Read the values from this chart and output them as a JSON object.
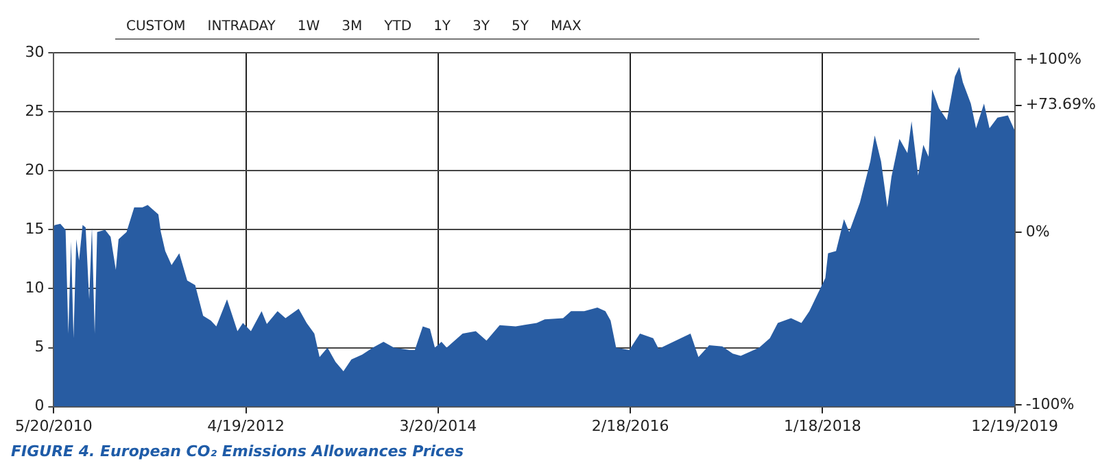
{
  "chart_data": {
    "type": "area",
    "title": "FIGURE 4. European CO₂ Emissions Allowances Prices",
    "annotations": [
      "CUSTOM",
      "INTRADAY",
      "1W",
      "3M",
      "YTD",
      "1Y",
      "3Y",
      "5Y",
      "MAX"
    ],
    "x": [
      "2010-05-20",
      "2010-05-24",
      "2010-06-13",
      "2010-07-02",
      "2010-07-12",
      "2010-07-22",
      "2010-07-31",
      "2010-08-10",
      "2010-08-20",
      "2010-09-02",
      "2010-09-13",
      "2010-09-26",
      "2010-10-06",
      "2010-10-16",
      "2010-10-25",
      "2010-11-23",
      "2010-12-13",
      "2011-01-01",
      "2011-01-11",
      "2011-02-09",
      "2011-03-09",
      "2011-04-08",
      "2011-04-27",
      "2011-06-05",
      "2011-06-14",
      "2011-06-30",
      "2011-07-23",
      "2011-08-20",
      "2011-09-18",
      "2011-10-17",
      "2011-11-15",
      "2011-12-13",
      "2012-01-02",
      "2012-02-10",
      "2012-03-19",
      "2012-04-08",
      "2012-05-07",
      "2012-06-15",
      "2012-07-04",
      "2012-08-12",
      "2012-09-10",
      "2012-10-28",
      "2012-11-26",
      "2012-12-24",
      "2013-01-12",
      "2013-02-10",
      "2013-03-11",
      "2013-04-09",
      "2013-05-08",
      "2013-06-16",
      "2013-07-25",
      "2013-09-02",
      "2013-10-10",
      "2013-12-07",
      "2013-12-25",
      "2014-01-23",
      "2014-02-18",
      "2014-03-08",
      "2014-04-01",
      "2014-04-20",
      "2014-06-17",
      "2014-08-04",
      "2014-09-12",
      "2014-10-30",
      "2014-12-27",
      "2015-03-14",
      "2015-04-12",
      "2015-06-18",
      "2015-07-17",
      "2015-09-03",
      "2015-10-21",
      "2015-11-19",
      "2015-12-08",
      "2015-12-28",
      "2016-02-14",
      "2016-03-24",
      "2016-05-11",
      "2016-05-31",
      "2016-09-24",
      "2016-10-23",
      "2016-12-01",
      "2017-01-18",
      "2017-02-25",
      "2017-03-26",
      "2017-06-01",
      "2017-07-10",
      "2017-08-08",
      "2017-09-25",
      "2017-11-02",
      "2017-12-01",
      "2017-12-30",
      "2018-01-28",
      "2018-02-07",
      "2018-03-08",
      "2018-04-06",
      "2018-04-25",
      "2018-06-03",
      "2018-07-11",
      "2018-07-27",
      "2018-08-19",
      "2018-09-11",
      "2018-09-26",
      "2018-10-25",
      "2018-11-23",
      "2018-12-08",
      "2019-01-01",
      "2019-01-20",
      "2019-02-08",
      "2019-02-21",
      "2019-03-18",
      "2019-04-16",
      "2019-05-15",
      "2019-05-31",
      "2019-06-13",
      "2019-07-12",
      "2019-07-31",
      "2019-08-29",
      "2019-09-18",
      "2019-10-17",
      "2019-11-24",
      "2019-12-19"
    ],
    "series": [
      {
        "color": "#285ca2",
        "values": [
          15.3,
          15.4,
          15.5,
          15.0,
          6.2,
          14.0,
          5.8,
          14.2,
          12.4,
          15.4,
          15.2,
          9.1,
          15.2,
          6.2,
          14.8,
          15.0,
          14.4,
          11.6,
          14.2,
          14.8,
          16.9,
          16.9,
          17.1,
          16.3,
          14.8,
          13.2,
          12.0,
          13.0,
          10.7,
          10.3,
          7.7,
          7.3,
          6.8,
          9.1,
          6.4,
          7.1,
          6.4,
          8.1,
          7.0,
          8.1,
          7.5,
          8.3,
          7.1,
          6.2,
          4.2,
          5.0,
          3.8,
          3.0,
          4.0,
          4.4,
          5.0,
          5.5,
          5.0,
          4.8,
          4.8,
          6.8,
          6.6,
          5.0,
          5.5,
          5.0,
          6.2,
          6.4,
          5.6,
          6.9,
          6.8,
          7.1,
          7.4,
          7.5,
          8.1,
          8.1,
          8.4,
          8.1,
          7.3,
          5.0,
          4.8,
          6.2,
          5.8,
          4.9,
          6.2,
          4.2,
          5.2,
          5.1,
          4.5,
          4.3,
          5.0,
          5.8,
          7.1,
          7.5,
          7.1,
          8.1,
          9.5,
          10.9,
          13.0,
          13.2,
          15.9,
          14.8,
          17.3,
          20.8,
          23.0,
          20.8,
          16.9,
          19.5,
          22.7,
          21.5,
          24.2,
          19.6,
          22.2,
          21.2,
          26.9,
          25.3,
          24.3,
          28.0,
          28.8,
          27.5,
          25.7,
          23.6,
          25.7,
          23.6,
          24.5,
          24.7,
          23.4
        ]
      }
    ],
    "xlim": [
      "2010-05-20",
      "2019-12-19"
    ],
    "xticks": [
      {
        "value": "2010-05-20",
        "label": "5/20/2010"
      },
      {
        "value": "2012-04-19",
        "label": "4/19/2012"
      },
      {
        "value": "2014-03-20",
        "label": "3/20/2014"
      },
      {
        "value": "2016-02-18",
        "label": "2/18/2016"
      },
      {
        "value": "2018-01-18",
        "label": "1/18/2018"
      },
      {
        "value": "2019-12-19",
        "label": "12/19/2019"
      }
    ],
    "ylim": [
      0,
      30
    ],
    "yticks": [
      0,
      5,
      10,
      15,
      20,
      25,
      30
    ],
    "y2lim": [
      -101,
      104
    ],
    "y2ticks": [
      {
        "value": 100,
        "label": "+100%"
      },
      {
        "value": 73.69,
        "label": "+73.69%"
      },
      {
        "value": 0,
        "label": "0%"
      },
      {
        "value": -100,
        "label": "-100%"
      }
    ],
    "grid": true,
    "legend": false,
    "marker": "none"
  }
}
